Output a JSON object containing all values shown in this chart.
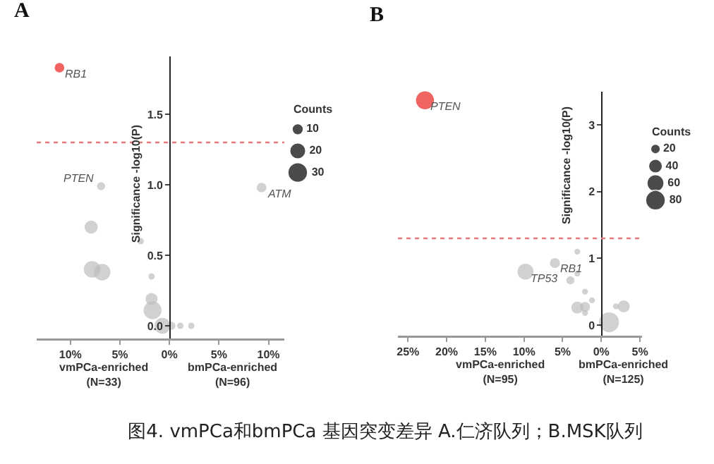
{
  "chart_data": [
    {
      "type": "bubble",
      "title": "A",
      "ylabel": "Significance -log10(P)",
      "legend_title": "Counts",
      "size_legend": [
        10,
        20,
        30
      ],
      "x": [
        -11.1,
        -6.9,
        9.3,
        -7.9,
        -2.9,
        -7.8,
        -6.8,
        -1.8,
        -1.8,
        -1.7,
        -0.7,
        0.2,
        1.1,
        2.2
      ],
      "values": [
        1.83,
        0.99,
        0.98,
        0.7,
        0.6,
        0.4,
        0.38,
        0.35,
        0.19,
        0.11,
        0.0,
        0.0,
        0.0,
        0.0
      ],
      "sizes": [
        7,
        5,
        7,
        13,
        3,
        21,
        21,
        3,
        11,
        24,
        19,
        5,
        3,
        3
      ],
      "colors": [
        "#e8211c",
        "#bdbdbd",
        "#bdbdbd",
        "#bdbdbd",
        "#bdbdbd",
        "#bdbdbd",
        "#bdbdbd",
        "#bdbdbd",
        "#bdbdbd",
        "#bdbdbd",
        "#bdbdbd",
        "#bdbdbd",
        "#bdbdbd",
        "#bdbdbd"
      ],
      "xlim": [
        -13.4,
        11.6
      ],
      "ylim": [
        -0.09,
        1.91
      ],
      "xticks": [
        {
          "value": -10,
          "label": "10%"
        },
        {
          "value": -5,
          "label": "5%"
        },
        {
          "value": 0,
          "label": "0%"
        },
        {
          "value": 5,
          "label": "5%"
        },
        {
          "value": 10,
          "label": "10%"
        }
      ],
      "yticks": [
        {
          "value": 0,
          "label": "0.0"
        },
        0.5,
        {
          "value": 1,
          "label": "1.0"
        },
        1.5
      ],
      "ref_lines": [
        {
          "axis": "y",
          "value": 1.3,
          "color": "#e8777a",
          "line_style": "dotted"
        }
      ],
      "annotations": [
        {
          "text": "RB1",
          "x": -11.1,
          "y": 1.83
        },
        {
          "text": "PTEN",
          "x": -6.9,
          "y": 0.99
        },
        {
          "text": "ATM",
          "x": 9.3,
          "y": 0.98
        },
        "vmPCa-enriched\n(N=33)",
        "bmPCa-enriched\n(N=96)"
      ],
      "grid": false
    },
    {
      "type": "bubble",
      "title": "B",
      "ylabel": "Significance -log10(P)",
      "legend_title": "Counts",
      "size_legend": [
        20,
        40,
        60,
        80
      ],
      "x": [
        -22.8,
        -6.0,
        -9.8,
        -3.1,
        -3.1,
        -4.0,
        -2.1,
        -1.2,
        -3.1,
        -2.1,
        -2.1,
        1.0,
        2.9,
        1.9
      ],
      "values": [
        3.37,
        0.93,
        0.8,
        1.1,
        0.77,
        0.67,
        0.5,
        0.37,
        0.26,
        0.27,
        0.18,
        0.04,
        0.28,
        0.28
      ],
      "sizes": [
        65,
        20,
        51,
        7,
        7,
        13,
        7,
        7,
        29,
        20,
        7,
        80,
        29,
        7
      ],
      "colors": [
        "#e8211c",
        "#bdbdbd",
        "#bdbdbd",
        "#bdbdbd",
        "#bdbdbd",
        "#bdbdbd",
        "#bdbdbd",
        "#bdbdbd",
        "#bdbdbd",
        "#bdbdbd",
        "#bdbdbd",
        "#bdbdbd",
        "#bdbdbd",
        "#bdbdbd"
      ],
      "xlim": [
        -26.3,
        5.3
      ],
      "ylim": [
        -0.16,
        3.5
      ],
      "xticks": [
        {
          "value": -25,
          "label": "25%"
        },
        {
          "value": -20,
          "label": "20%"
        },
        {
          "value": -15,
          "label": "15%"
        },
        {
          "value": -10,
          "label": "10%"
        },
        {
          "value": -5,
          "label": "5%"
        },
        {
          "value": 0,
          "label": "0%"
        },
        {
          "value": 5,
          "label": "5%"
        }
      ],
      "yticks": [
        0,
        1,
        2,
        3
      ],
      "ref_lines": [
        {
          "axis": "y",
          "value": 1.3,
          "color": "#e8777a",
          "line_style": "dotted"
        }
      ],
      "annotations": [
        {
          "text": "PTEN",
          "x": -22.8,
          "y": 3.37
        },
        {
          "text": "RB1",
          "x": -6.0,
          "y": 0.93
        },
        {
          "text": "TP53",
          "x": -9.8,
          "y": 0.8
        },
        "vmPCa-enriched\n(N=95)",
        "bmPCa-enriched\n(N=125)",
        "图4. vmPCa和bmPCa 基因突变差异  A.仁济队列；B.MSK队列"
      ],
      "grid": false
    }
  ]
}
